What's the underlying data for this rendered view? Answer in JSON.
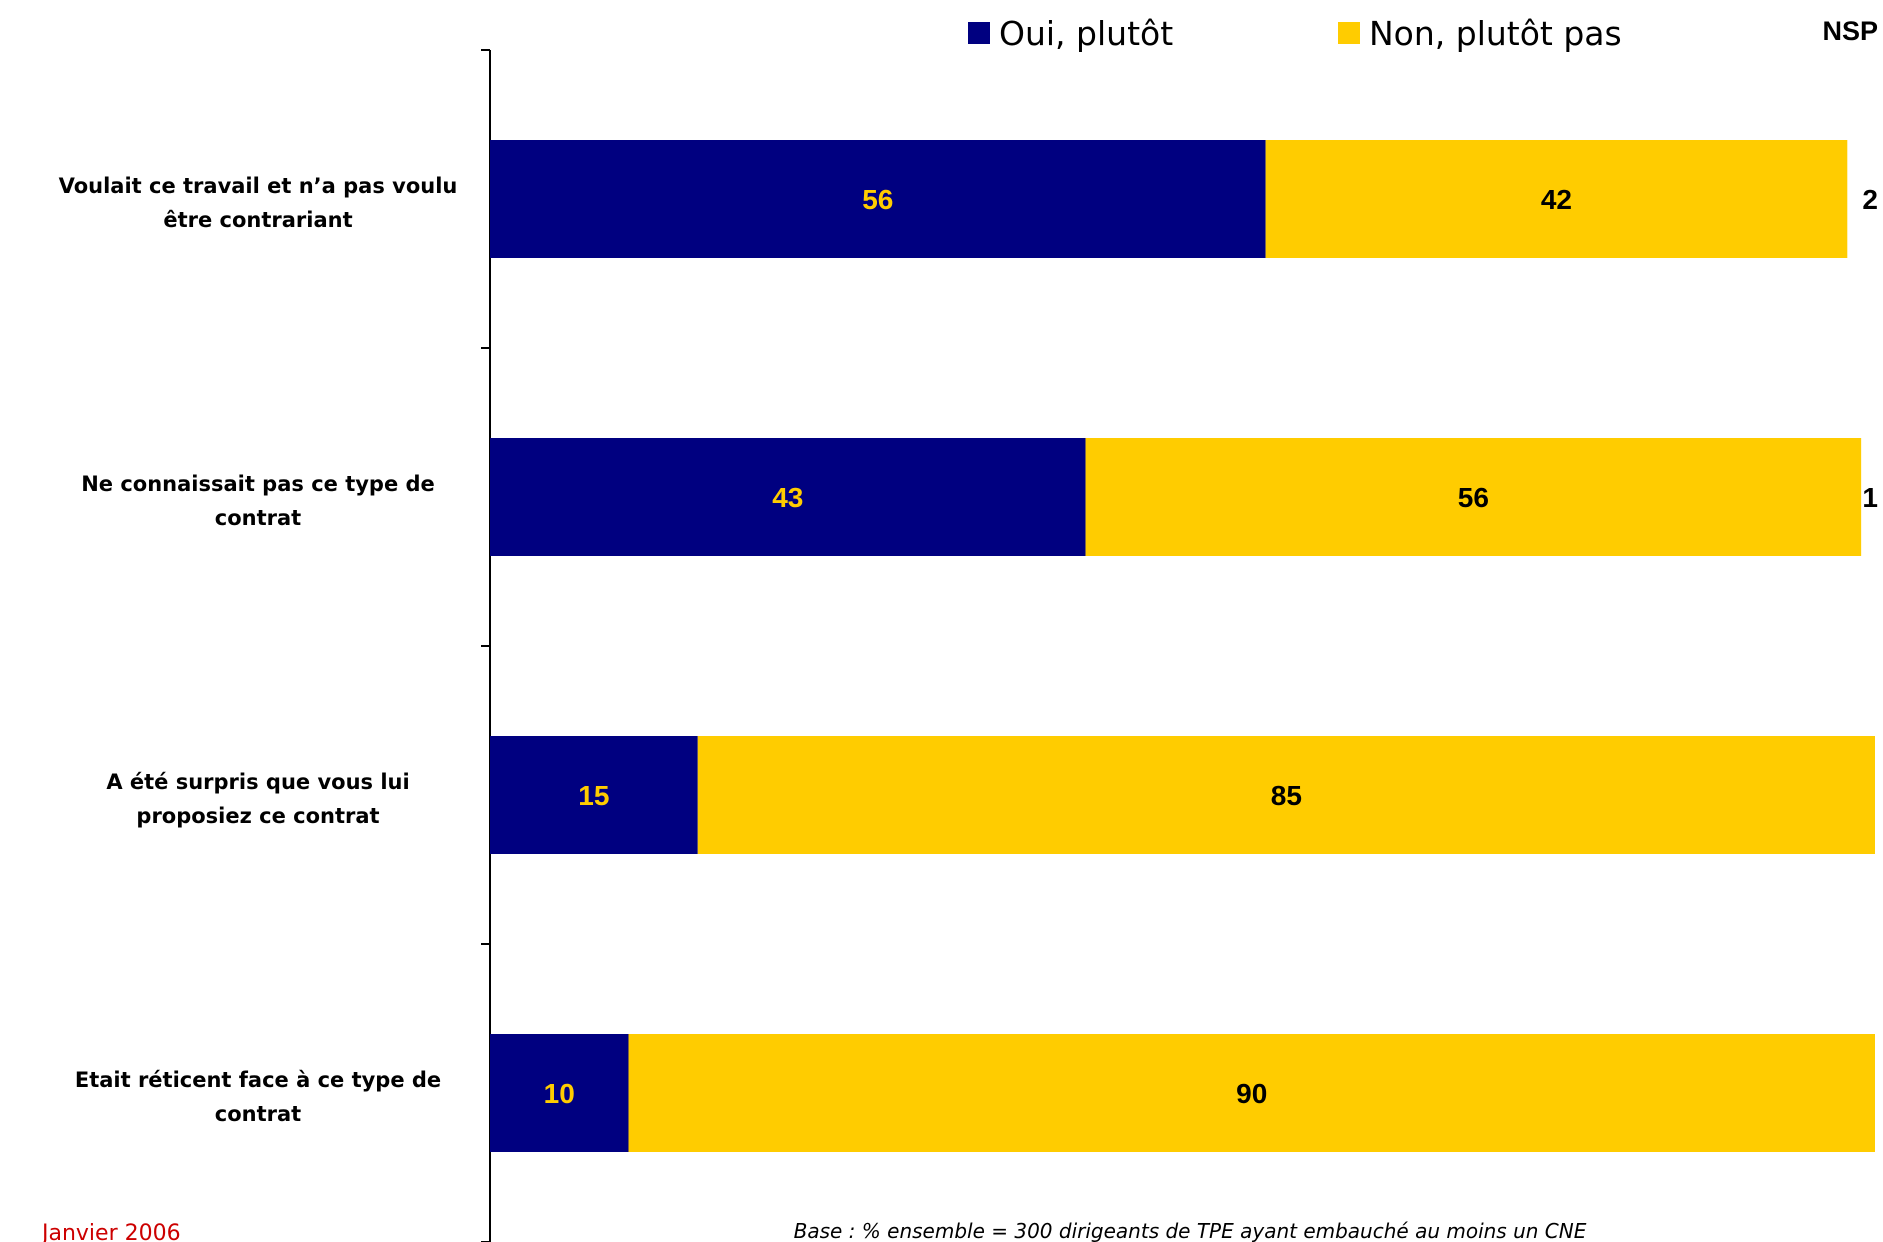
{
  "chart_data": {
    "type": "bar",
    "orientation": "horizontal",
    "stacked": true,
    "categories": [
      "Voulait ce travail et n’a pas voulu être contrariant",
      "Ne connaissait pas ce type de contrat",
      "A été surpris que vous lui proposiez ce contrat",
      "Etait réticent face à ce type de contrat"
    ],
    "category_lines": [
      [
        "Voulait ce travail et n’a pas voulu",
        "être contrariant"
      ],
      [
        "Ne connaissait pas ce type de",
        "contrat"
      ],
      [
        "A été surpris que vous lui",
        "proposiez ce contrat"
      ],
      [
        "Etait réticent face à ce type de",
        "contrat"
      ]
    ],
    "series": [
      {
        "name": "Oui, plutôt",
        "values": [
          56,
          43,
          15,
          10
        ],
        "color": "#000080",
        "label_color": "#FFCC00"
      },
      {
        "name": "Non, plutôt pas",
        "values": [
          42,
          56,
          85,
          90
        ],
        "color": "#FFCC00",
        "label_color": "#000000"
      }
    ],
    "nsp": {
      "header": "NSP",
      "values": [
        "2",
        "1",
        "",
        ""
      ]
    },
    "xlim": [
      0,
      100
    ],
    "legend_position": "top",
    "grid": false
  },
  "footer": {
    "base_note": "Base : % ensemble = 300 dirigeants de TPE ayant embauché au moins un CNE",
    "date_note": "Janvier 2006"
  }
}
